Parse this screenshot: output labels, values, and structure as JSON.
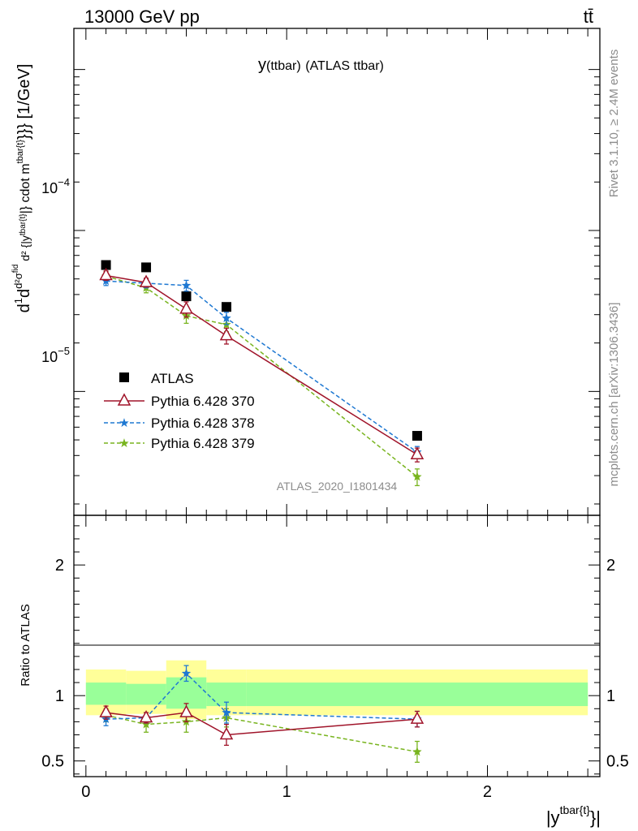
{
  "header": {
    "energy_label": "13000 GeV pp",
    "process_label": "tt̄"
  },
  "side_labels": {
    "rivet": "Rivet 3.1.10, ≥ 2.4M events",
    "mcplots": "mcplots.cern.ch [arXiv:1306.3436]"
  },
  "chart_data": [
    {
      "type": "scatter",
      "panel": "main",
      "title_main": "y",
      "title_sub": "(ttbar)",
      "title_tail": "(ATLAS ttbar)",
      "ylabel": "d 1/σ d d²σ^fid / d² {|y^tbar{t}|} cdot m^tbar{t}}} [1/GeV]",
      "watermark": "ATLAS_2020_I1801434",
      "yscale": "log",
      "ylim": [
        1.7e-06,
        0.0018
      ],
      "xlim": [
        -0.06,
        2.56
      ],
      "ytick_labels": [
        "10⁻⁵",
        "10⁻⁴"
      ],
      "series": [
        {
          "name": "ATLAS",
          "color": "#000000",
          "style": "square",
          "x": [
            0.1,
            0.3,
            0.5,
            0.7,
            1.65
          ],
          "y": [
            6.1e-05,
            5.9e-05,
            3.9e-05,
            3.35e-05,
            5.3e-06
          ]
        },
        {
          "name": "Pythia 6.428 370",
          "color": "#a0142a",
          "style": "triangle-solid",
          "x": [
            0.1,
            0.3,
            0.5,
            0.7,
            1.65
          ],
          "y": [
            5.25e-05,
            4.75e-05,
            3.25e-05,
            2.22e-05,
            4.05e-06
          ],
          "err": [
            3.5e-06,
            3e-06,
            3.5e-06,
            2.5e-06,
            4e-07
          ]
        },
        {
          "name": "Pythia 6.428 378",
          "color": "#1e78d2",
          "style": "star-dashed",
          "x": [
            0.1,
            0.3,
            0.5,
            0.7,
            1.65
          ],
          "y": [
            4.85e-05,
            4.7e-05,
            4.55e-05,
            2.85e-05,
            4.2e-06
          ],
          "err": [
            3e-06,
            3e-06,
            3.5e-06,
            2.5e-06,
            3.5e-07
          ]
        },
        {
          "name": "Pythia 6.428 379",
          "color": "#78b41e",
          "style": "star-dashed",
          "x": [
            0.1,
            0.3,
            0.5,
            0.7,
            1.65
          ],
          "y": [
            5.2e-05,
            4.4e-05,
            2.95e-05,
            2.6e-05,
            2.95e-06
          ],
          "err": [
            3.5e-06,
            3e-06,
            3e-06,
            2.5e-06,
            3.5e-07
          ]
        }
      ]
    },
    {
      "type": "scatter",
      "panel": "ratio",
      "ylabel": "Ratio to ATLAS",
      "xlabel": "|y^tbar{t}}|",
      "ylim": [
        0.38,
        2.38
      ],
      "xlim": [
        -0.06,
        2.56
      ],
      "xtick_labels": [
        "0",
        "1",
        "2"
      ],
      "ytick_labels": [
        "0.5",
        "1",
        "2"
      ],
      "bands": {
        "x_edges": [
          0.0,
          0.2,
          0.4,
          0.6,
          0.8,
          2.5
        ],
        "yellow_low": [
          0.85,
          0.86,
          0.82,
          0.85,
          0.85
        ],
        "yellow_high": [
          1.2,
          1.19,
          1.27,
          1.2,
          1.2
        ],
        "green_low": [
          0.93,
          0.93,
          0.9,
          0.92,
          0.92
        ],
        "green_high": [
          1.1,
          1.09,
          1.14,
          1.1,
          1.1
        ]
      },
      "series": [
        {
          "name": "Pythia 6.428 370",
          "color": "#a0142a",
          "x": [
            0.1,
            0.3,
            0.5,
            0.7,
            1.65
          ],
          "y": [
            0.87,
            0.83,
            0.87,
            0.7,
            0.82
          ],
          "err": [
            0.05,
            0.04,
            0.07,
            0.08,
            0.06
          ]
        },
        {
          "name": "Pythia 6.428 378",
          "color": "#1e78d2",
          "x": [
            0.1,
            0.3,
            0.5,
            0.7,
            1.65
          ],
          "y": [
            0.82,
            0.83,
            1.17,
            0.87,
            0.82
          ],
          "err": [
            0.05,
            0.04,
            0.06,
            0.08,
            0.06
          ]
        },
        {
          "name": "Pythia 6.428 379",
          "color": "#78b41e",
          "x": [
            0.1,
            0.3,
            0.5,
            0.7,
            1.65
          ],
          "y": [
            0.85,
            0.78,
            0.8,
            0.83,
            0.57
          ],
          "err": [
            0.05,
            0.06,
            0.08,
            0.07,
            0.08
          ]
        }
      ]
    }
  ]
}
